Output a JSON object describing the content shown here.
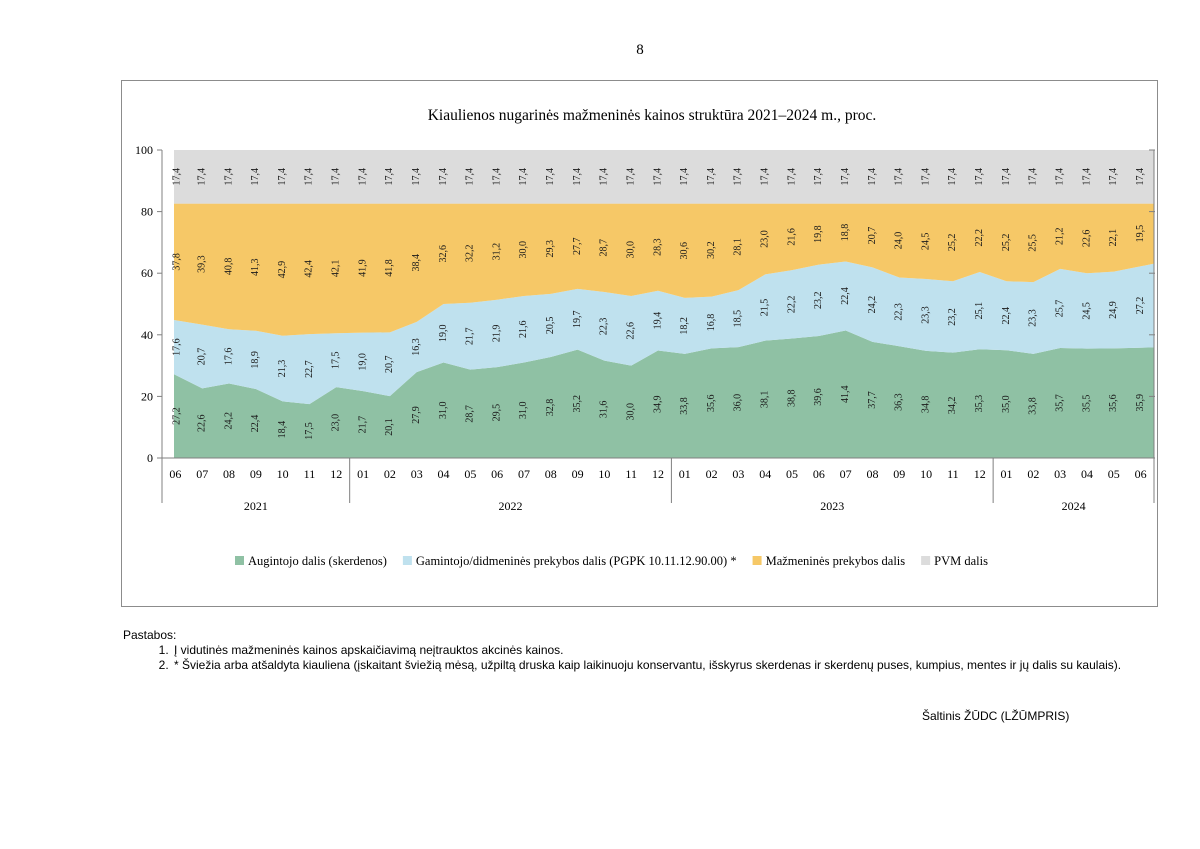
{
  "page_number": "8",
  "chart_data": {
    "type": "area",
    "stacked": true,
    "title": "Kiaulienos nugarinės mažmeninės kainos struktūra 2021–2024 m., proc.",
    "xlabel": "",
    "ylabel": "",
    "ylim": [
      0,
      100
    ],
    "yticks": [
      "0",
      "20",
      "40",
      "60",
      "80",
      "100"
    ],
    "grid": false,
    "legend_position": "bottom",
    "categories": [
      "06",
      "07",
      "08",
      "09",
      "10",
      "11",
      "12",
      "01",
      "02",
      "03",
      "04",
      "05",
      "06",
      "07",
      "08",
      "09",
      "10",
      "11",
      "12",
      "01",
      "02",
      "03",
      "04",
      "05",
      "06",
      "07",
      "08",
      "09",
      "10",
      "11",
      "12",
      "01",
      "02",
      "03",
      "04",
      "05",
      "06"
    ],
    "years": [
      {
        "label": "2021",
        "start": 0,
        "count": 7
      },
      {
        "label": "2022",
        "start": 7,
        "count": 12
      },
      {
        "label": "2023",
        "start": 19,
        "count": 12
      },
      {
        "label": "2024",
        "start": 31,
        "count": 6
      }
    ],
    "series": [
      {
        "name": "Augintojo dalis (skerdenos)",
        "color": "#8fc1a4",
        "values": [
          27.2,
          22.6,
          24.2,
          22.4,
          18.4,
          17.5,
          23.0,
          21.7,
          20.1,
          27.9,
          31.0,
          28.7,
          29.5,
          31.0,
          32.8,
          35.2,
          31.6,
          30.0,
          34.9,
          33.8,
          35.6,
          36.0,
          38.1,
          38.8,
          39.6,
          41.4,
          37.7,
          36.3,
          34.8,
          34.2,
          35.3,
          35.0,
          33.8,
          35.7,
          35.5,
          35.6,
          35.9
        ]
      },
      {
        "name": "Gamintojo/didmeninės prekybos dalis (PGPK 10.11.12.90.00) *",
        "color": "#bfe1ee",
        "values": [
          17.6,
          20.7,
          17.6,
          18.9,
          21.3,
          22.7,
          17.5,
          19.0,
          20.7,
          16.3,
          19.0,
          21.7,
          21.9,
          21.6,
          20.5,
          19.7,
          22.3,
          22.6,
          19.4,
          18.2,
          16.8,
          18.5,
          21.5,
          22.2,
          23.2,
          22.4,
          24.2,
          22.3,
          23.3,
          23.2,
          25.1,
          22.4,
          23.3,
          25.7,
          24.5,
          24.9,
          27.2
        ]
      },
      {
        "name": "Mažmeninės prekybos dalis",
        "color": "#f6c867",
        "values": [
          37.8,
          39.3,
          40.8,
          41.3,
          42.9,
          42.4,
          42.1,
          41.9,
          41.8,
          38.4,
          32.6,
          32.2,
          31.2,
          30.0,
          29.3,
          27.7,
          28.7,
          30.0,
          28.3,
          30.6,
          30.2,
          28.1,
          23.0,
          21.6,
          19.8,
          18.8,
          20.7,
          24.0,
          24.5,
          25.2,
          22.2,
          25.2,
          25.5,
          21.2,
          22.6,
          22.1,
          19.5
        ]
      },
      {
        "name": "PVM dalis",
        "color": "#dcdcdc",
        "values": [
          17.4,
          17.4,
          17.4,
          17.4,
          17.4,
          17.4,
          17.4,
          17.4,
          17.4,
          17.4,
          17.4,
          17.4,
          17.4,
          17.4,
          17.4,
          17.4,
          17.4,
          17.4,
          17.4,
          17.4,
          17.4,
          17.4,
          17.4,
          17.4,
          17.4,
          17.4,
          17.4,
          17.4,
          17.4,
          17.4,
          17.4,
          17.4,
          17.4,
          17.4,
          17.4,
          17.4,
          17.4
        ]
      }
    ]
  },
  "notes": {
    "heading": "Pastabos:",
    "items": [
      "Į vidutinės mažmeninės kainos apskaičiavimą neįtrauktos akcinės kainos.",
      "* Šviežia arba atšaldyta kiauliena (įskaitant šviežią mėsą, užpiltą druska kaip laikinuoju konservantu, išskyrus skerdenas ir skerdenų puses, kumpius, mentes ir jų dalis su kaulais)."
    ]
  },
  "source": "Šaltinis ŽŪDC (LŽŪMPRIS)"
}
